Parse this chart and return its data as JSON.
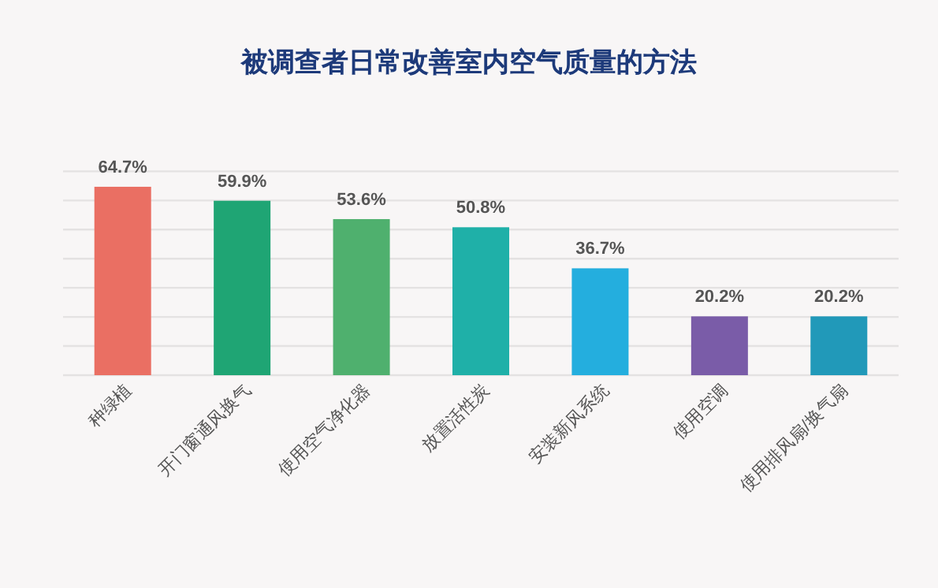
{
  "chart_data": {
    "type": "bar",
    "title": "被调查者日常改善室内空气质量的方法",
    "categories": [
      "种绿植",
      "开门窗通风换气",
      "使用空气净化器",
      "放置活性炭",
      "安装新风系统",
      "使用空调",
      "使用排风扇/换气扇"
    ],
    "values": [
      64.7,
      59.9,
      53.6,
      50.8,
      36.7,
      20.2,
      20.2
    ],
    "colors": [
      "#ea6f63",
      "#1fa574",
      "#4fb06e",
      "#1fb0a8",
      "#24aede",
      "#7a5ca8",
      "#2199b9"
    ],
    "value_labels": [
      "64.7%",
      "59.9%",
      "53.6%",
      "50.8%",
      "36.7%",
      "20.2%",
      "20.2%"
    ],
    "ylim": [
      0,
      72
    ],
    "yticks": [
      {
        "value": 0,
        "label": null
      },
      {
        "value": 10,
        "label": null
      },
      {
        "value": 20,
        "label": null
      },
      {
        "value": 30,
        "label": null
      },
      {
        "value": 40,
        "label": null
      },
      {
        "value": 50,
        "label": null
      },
      {
        "value": 60,
        "label": null
      },
      {
        "value": 70,
        "label": null
      }
    ],
    "grid": "y",
    "tick_labels": "x"
  }
}
